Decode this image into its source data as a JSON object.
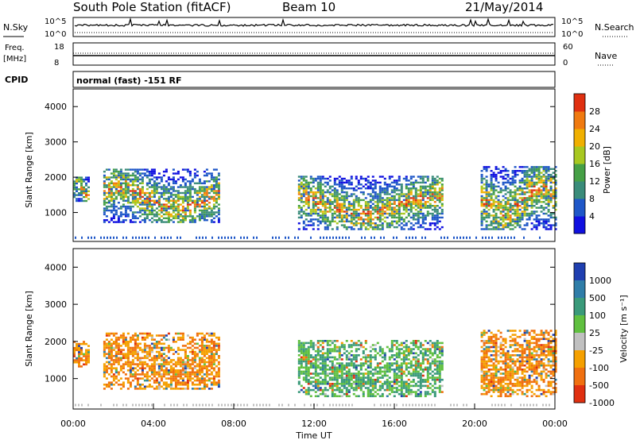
{
  "header": {
    "station": "South Pole Station (fitACF)",
    "beam": "Beam 10",
    "date": "21/May/2014"
  },
  "top_panels": {
    "nsky": {
      "label": "N.Sky",
      "ticks": [
        "10^5",
        "10^0"
      ],
      "right_label": "N.Search",
      "right_ticks": [
        "10^5",
        "10^0"
      ]
    },
    "freq": {
      "label_line1": "Freq.",
      "label_line2": "[MHz]",
      "ticks": [
        "18",
        "8"
      ],
      "right_label": "Nave",
      "right_ticks": [
        "60",
        "0"
      ]
    },
    "cpid": {
      "label": "CPID",
      "text": "normal (fast) -151 RF"
    }
  },
  "chart_data": [
    {
      "type": "heatmap",
      "title": "",
      "xlabel": "",
      "ylabel": "Slant Range [km]",
      "xlim": [
        "00:00",
        "24:00"
      ],
      "ylim": [
        180,
        4500
      ],
      "yticks": [
        "1000",
        "2000",
        "3000",
        "4000"
      ],
      "colorbar": {
        "label": "Power [dB]",
        "ticks": [
          "4",
          "8",
          "12",
          "16",
          "20",
          "24",
          "28"
        ],
        "colors": [
          "#1010e0",
          "#1f57c8",
          "#3a8c7a",
          "#46a046",
          "#a8c820",
          "#f0b000",
          "#f07a10",
          "#e03010"
        ]
      },
      "echo_regions": [
        {
          "t_start": 0.0,
          "t_end": 0.8,
          "r_low": 1300,
          "r_high": 2000
        },
        {
          "t_start": 1.5,
          "t_end": 7.3,
          "r_low": 700,
          "r_high": 2200
        },
        {
          "t_start": 11.2,
          "t_end": 18.4,
          "r_low": 500,
          "r_high": 2000
        },
        {
          "t_start": 20.3,
          "t_end": 24.0,
          "r_low": 500,
          "r_high": 2300
        }
      ]
    },
    {
      "type": "heatmap",
      "title": "",
      "xlabel": "Time UT",
      "ylabel": "Slant Range [km]",
      "xlim": [
        "00:00",
        "24:00"
      ],
      "ylim": [
        180,
        4500
      ],
      "xticks": [
        "00:00",
        "04:00",
        "08:00",
        "12:00",
        "16:00",
        "20:00",
        "00:00"
      ],
      "yticks": [
        "1000",
        "2000",
        "3000",
        "4000"
      ],
      "colorbar": {
        "label": "Velocity [m s⁻¹]",
        "ticks": [
          "1000",
          "500",
          "100",
          "25",
          "-25",
          "-100",
          "-500",
          "-1000"
        ],
        "colors": [
          "#1f3fb0",
          "#2f7da8",
          "#3a9a7a",
          "#60c040",
          "#c0c0c0",
          "#f5a000",
          "#f07010",
          "#e03010"
        ]
      },
      "echo_regions": [
        {
          "t_start": 0.0,
          "t_end": 0.8,
          "r_low": 1300,
          "r_high": 2000
        },
        {
          "t_start": 1.5,
          "t_end": 7.3,
          "r_low": 700,
          "r_high": 2200
        },
        {
          "t_start": 11.2,
          "t_end": 18.4,
          "r_low": 500,
          "r_high": 2000
        },
        {
          "t_start": 20.3,
          "t_end": 24.0,
          "r_low": 500,
          "r_high": 2300
        }
      ]
    }
  ]
}
